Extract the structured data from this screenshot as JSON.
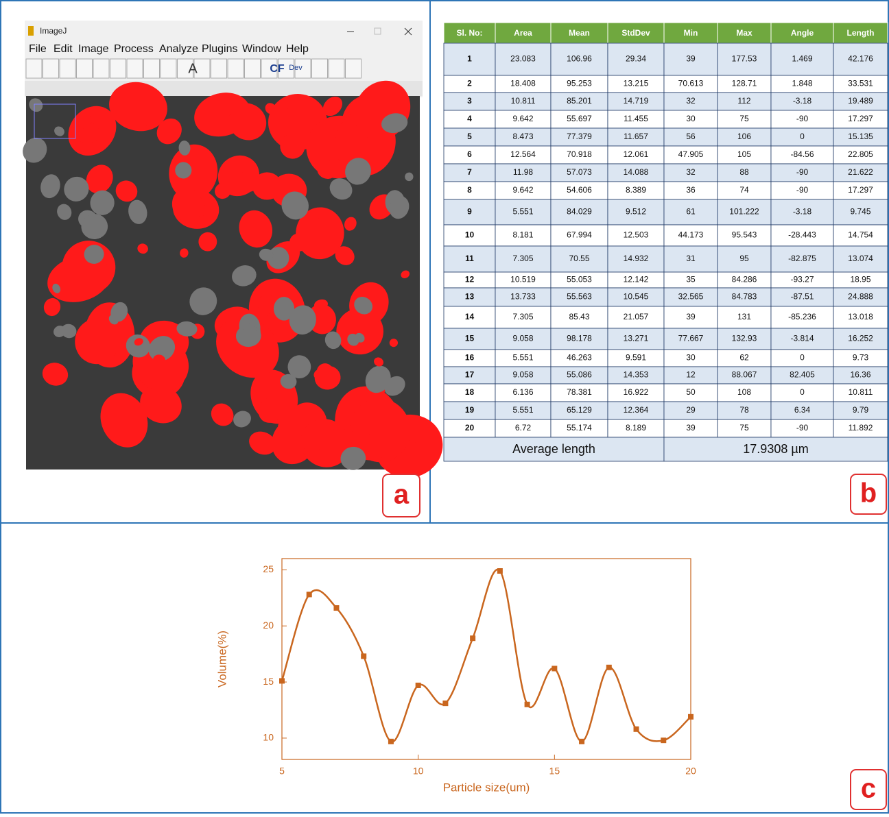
{
  "panel_a": {
    "window_title": "ImageJ",
    "menu": [
      "File",
      "Edit",
      "Image",
      "Process",
      "Analyze",
      "Plugins",
      "Window",
      "Help"
    ],
    "toolbar": [
      "A",
      "CF",
      "Dev"
    ],
    "label": "a"
  },
  "table": {
    "header": [
      "Sl. No:",
      "Area",
      "Mean",
      "StdDev",
      "Min",
      "Max",
      "Angle",
      "Length"
    ],
    "rows": [
      [
        "1",
        "23.083",
        "106.96",
        "29.34",
        "39",
        "177.53",
        "1.469",
        "42.176"
      ],
      [
        "2",
        "18.408",
        "95.253",
        "13.215",
        "70.613",
        "128.71",
        "1.848",
        "33.531"
      ],
      [
        "3",
        "10.811",
        "85.201",
        "14.719",
        "32",
        "112",
        "-3.18",
        "19.489"
      ],
      [
        "4",
        "9.642",
        "55.697",
        "11.455",
        "30",
        "75",
        "-90",
        "17.297"
      ],
      [
        "5",
        "8.473",
        "77.379",
        "11.657",
        "56",
        "106",
        "0",
        "15.135"
      ],
      [
        "6",
        "12.564",
        "70.918",
        "12.061",
        "47.905",
        "105",
        "-84.56",
        "22.805"
      ],
      [
        "7",
        "11.98",
        "57.073",
        "14.088",
        "32",
        "88",
        "-90",
        "21.622"
      ],
      [
        "8",
        "9.642",
        "54.606",
        "8.389",
        "36",
        "74",
        "-90",
        "17.297"
      ],
      [
        "9",
        "5.551",
        "84.029",
        "9.512",
        "61",
        "101.222",
        "-3.18",
        "9.745"
      ],
      [
        "10",
        "8.181",
        "67.994",
        "12.503",
        "44.173",
        "95.543",
        "-28.443",
        "14.754"
      ],
      [
        "11",
        "7.305",
        "70.55",
        "14.932",
        "31",
        "95",
        "-82.875",
        "13.074"
      ],
      [
        "12",
        "10.519",
        "55.053",
        "12.142",
        "35",
        "84.286",
        "-93.27",
        "18.95"
      ],
      [
        "13",
        "13.733",
        "55.563",
        "10.545",
        "32.565",
        "84.783",
        "-87.51",
        "24.888"
      ],
      [
        "14",
        "7.305",
        "85.43",
        "21.057",
        "39",
        "131",
        "-85.236",
        "13.018"
      ],
      [
        "15",
        "9.058",
        "98.178",
        "13.271",
        "77.667",
        "132.93",
        "-3.814",
        "16.252"
      ],
      [
        "16",
        "5.551",
        "46.263",
        "9.591",
        "30",
        "62",
        "0",
        "9.73"
      ],
      [
        "17",
        "9.058",
        "55.086",
        "14.353",
        "12",
        "88.067",
        "82.405",
        "16.36"
      ],
      [
        "18",
        "6.136",
        "78.381",
        "16.922",
        "50",
        "108",
        "0",
        "10.811"
      ],
      [
        "19",
        "5.551",
        "65.129",
        "12.364",
        "29",
        "78",
        "6.34",
        "9.79"
      ],
      [
        "20",
        "6.72",
        "55.174",
        "8.189",
        "39",
        "75",
        "-90",
        "11.892"
      ]
    ],
    "footer": [
      "Average length",
      "17.9308 µm"
    ],
    "label": "b"
  },
  "chart_data": {
    "type": "line",
    "x_label": "Particle size(um)",
    "y_label": "Volume(%)",
    "color": "#c9661e",
    "x": [
      5,
      6,
      7,
      8,
      9,
      10,
      11,
      12,
      13,
      14,
      15,
      16,
      17,
      18,
      19,
      20
    ],
    "values": [
      15.1,
      22.8,
      21.6,
      17.3,
      9.7,
      14.7,
      13.1,
      18.9,
      24.9,
      13.0,
      16.2,
      9.7,
      16.3,
      10.8,
      9.8,
      11.9
    ],
    "xlim": [
      5,
      20
    ],
    "xticks": [
      5,
      10,
      15,
      20
    ],
    "ylim": [
      8.1,
      26
    ],
    "yticks": [
      10,
      15,
      20,
      25
    ],
    "smooth": true,
    "label": "c"
  }
}
